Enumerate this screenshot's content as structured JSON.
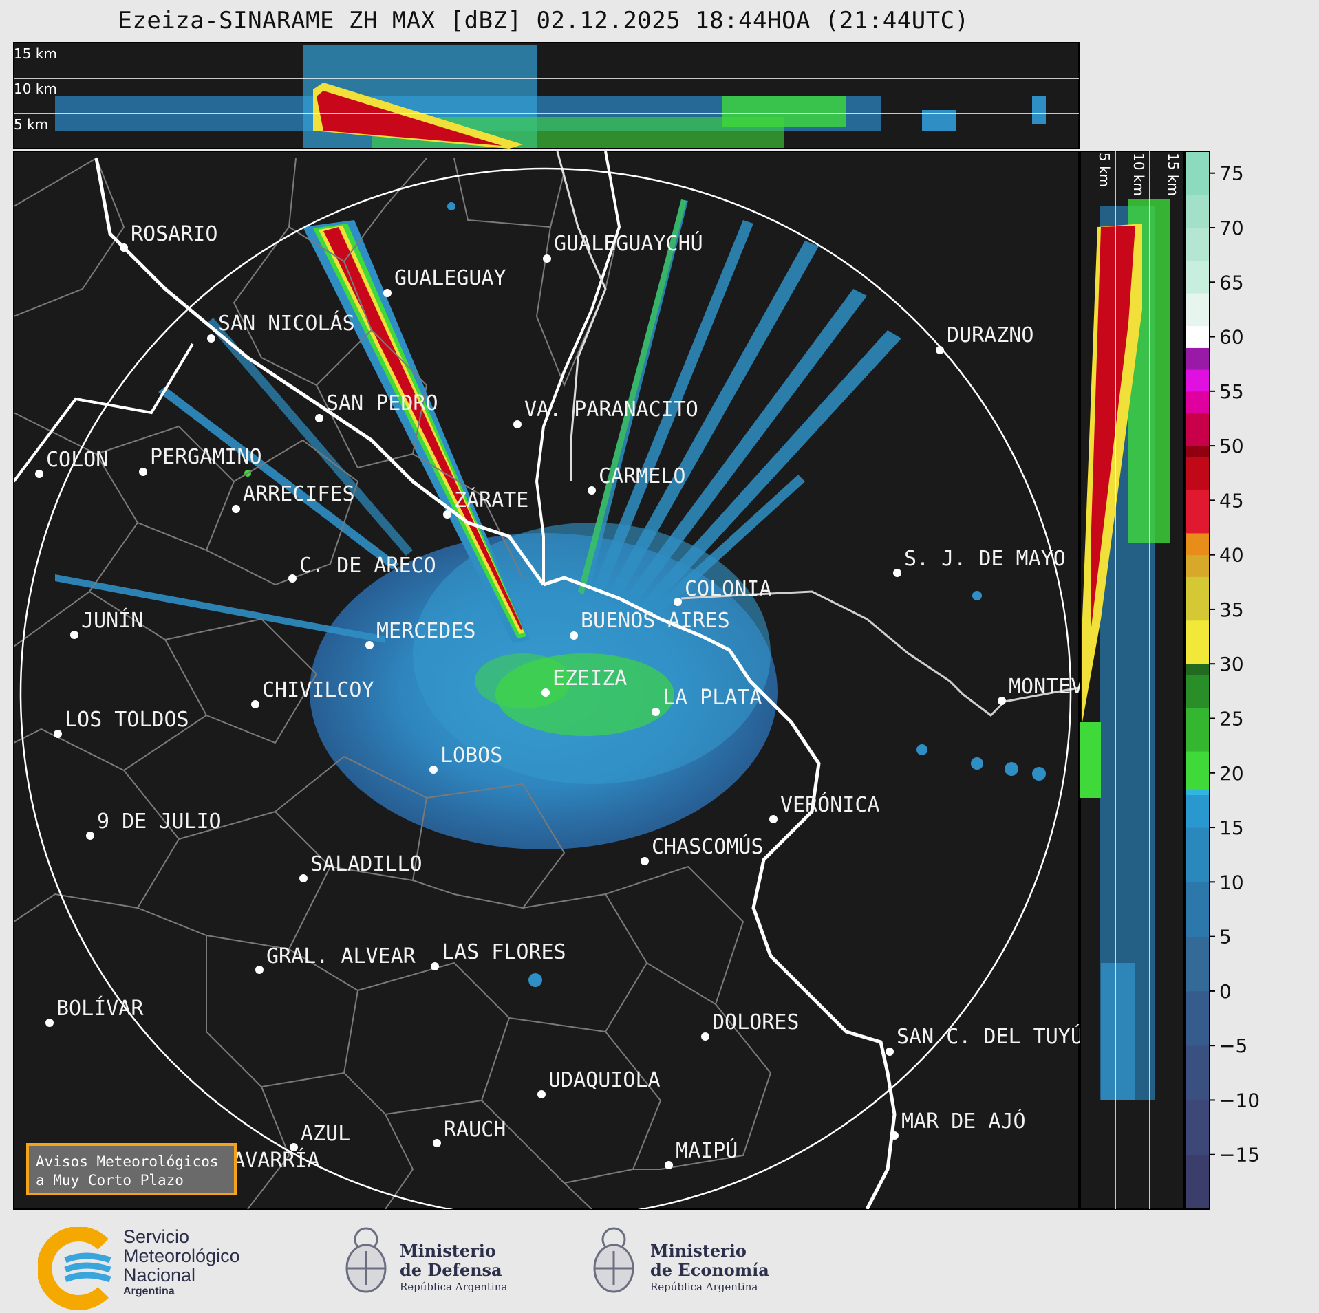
{
  "title": "Ezeiza-SINARAME ZH MAX [dBZ] 02.12.2025 18:44HOA (21:44UTC)",
  "top_panel": {
    "heights": [
      "15 km",
      "10 km",
      "5 km"
    ]
  },
  "side_panel": {
    "heights": [
      "5 km",
      "10 km",
      "15 km"
    ]
  },
  "colorbar": {
    "ticks": [
      "75",
      "70",
      "65",
      "60",
      "55",
      "50",
      "45",
      "40",
      "35",
      "30",
      "25",
      "20",
      "15",
      "10",
      "5",
      "0",
      "−5",
      "−10",
      "−15"
    ],
    "range_dbz": [
      -20,
      77
    ]
  },
  "cities": [
    {
      "name": "ROSARIO"
    },
    {
      "name": "GUALEGUAYCHÚ"
    },
    {
      "name": "GUALEGUAY"
    },
    {
      "name": "SAN NICOLÁS"
    },
    {
      "name": "DURAZNO"
    },
    {
      "name": "SAN PEDRO"
    },
    {
      "name": "VA. PARANACITO"
    },
    {
      "name": "COLON"
    },
    {
      "name": "PERGAMINO"
    },
    {
      "name": "CARMELO"
    },
    {
      "name": "ARRECIFES"
    },
    {
      "name": "ZÁRATE"
    },
    {
      "name": "S. J. DE MAYO"
    },
    {
      "name": "C. DE ARECO"
    },
    {
      "name": "COLONIA"
    },
    {
      "name": "JUNÍN"
    },
    {
      "name": "BUENOS AIRES"
    },
    {
      "name": "MERCEDES"
    },
    {
      "name": "EZEIZA"
    },
    {
      "name": "MONTEV"
    },
    {
      "name": "CHIVILCOY"
    },
    {
      "name": "LA PLATA"
    },
    {
      "name": "LOS TOLDOS"
    },
    {
      "name": "LOBOS"
    },
    {
      "name": "VERÓNICA"
    },
    {
      "name": "9 DE JULIO"
    },
    {
      "name": "CHASCOMÚS"
    },
    {
      "name": "SALADILLO"
    },
    {
      "name": "GRAL. ALVEAR"
    },
    {
      "name": "LAS FLORES"
    },
    {
      "name": "BOLÍVAR"
    },
    {
      "name": "DOLORES"
    },
    {
      "name": "SAN C. DEL TUYÚ"
    },
    {
      "name": "UDAQUIOLA"
    },
    {
      "name": "MAR DE AJÓ"
    },
    {
      "name": "AZUL"
    },
    {
      "name": "RAUCH"
    },
    {
      "name": "MAIPÚ"
    },
    {
      "name": "OLAVARRÍA"
    }
  ],
  "notice": {
    "line1": "Avisos Meteorológicos",
    "line2": "a Muy Corto Plazo"
  },
  "footer": {
    "smn": {
      "l1": "Servicio",
      "l2": "Meteorológico",
      "l3": "Nacional",
      "l4": "Argentina"
    },
    "defensa": {
      "l1": "Ministerio",
      "l2": "de Defensa",
      "l3": "República Argentina"
    },
    "economia": {
      "l1": "Ministerio",
      "l2": "de Economía",
      "l3": "República Argentina"
    }
  },
  "colors": {
    "background": "#1a1a1a",
    "echo_low": "#2f8fc4",
    "echo_mid": "#3fd93a",
    "echo_high": "#c8081a",
    "notice_border": "#f4a41a"
  }
}
